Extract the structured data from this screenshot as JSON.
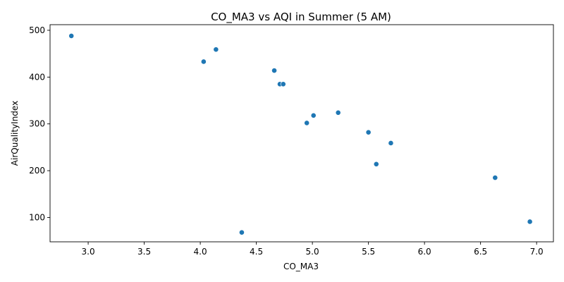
{
  "chart_data": {
    "type": "scatter",
    "title": "CO_MA3 vs AQI in Summer (5 AM)",
    "xlabel": "CO_MA3",
    "ylabel": "AirQualityIndex",
    "xlim": [
      2.66,
      7.15
    ],
    "ylim": [
      48,
      512
    ],
    "xticks": [
      "3.0",
      "3.5",
      "4.0",
      "4.5",
      "5.0",
      "5.5",
      "6.0",
      "6.5",
      "7.0"
    ],
    "yticks": [
      "100",
      "200",
      "300",
      "400",
      "500"
    ],
    "grid": false,
    "point_color": "#1f77b4",
    "points": [
      {
        "x": 2.85,
        "y": 488
      },
      {
        "x": 4.03,
        "y": 433
      },
      {
        "x": 4.14,
        "y": 459
      },
      {
        "x": 4.37,
        "y": 68
      },
      {
        "x": 4.66,
        "y": 414
      },
      {
        "x": 4.71,
        "y": 385
      },
      {
        "x": 4.74,
        "y": 385
      },
      {
        "x": 4.95,
        "y": 302
      },
      {
        "x": 5.01,
        "y": 318
      },
      {
        "x": 5.23,
        "y": 324
      },
      {
        "x": 5.5,
        "y": 282
      },
      {
        "x": 5.57,
        "y": 214
      },
      {
        "x": 5.7,
        "y": 259
      },
      {
        "x": 6.63,
        "y": 185
      },
      {
        "x": 6.94,
        "y": 91
      }
    ]
  }
}
